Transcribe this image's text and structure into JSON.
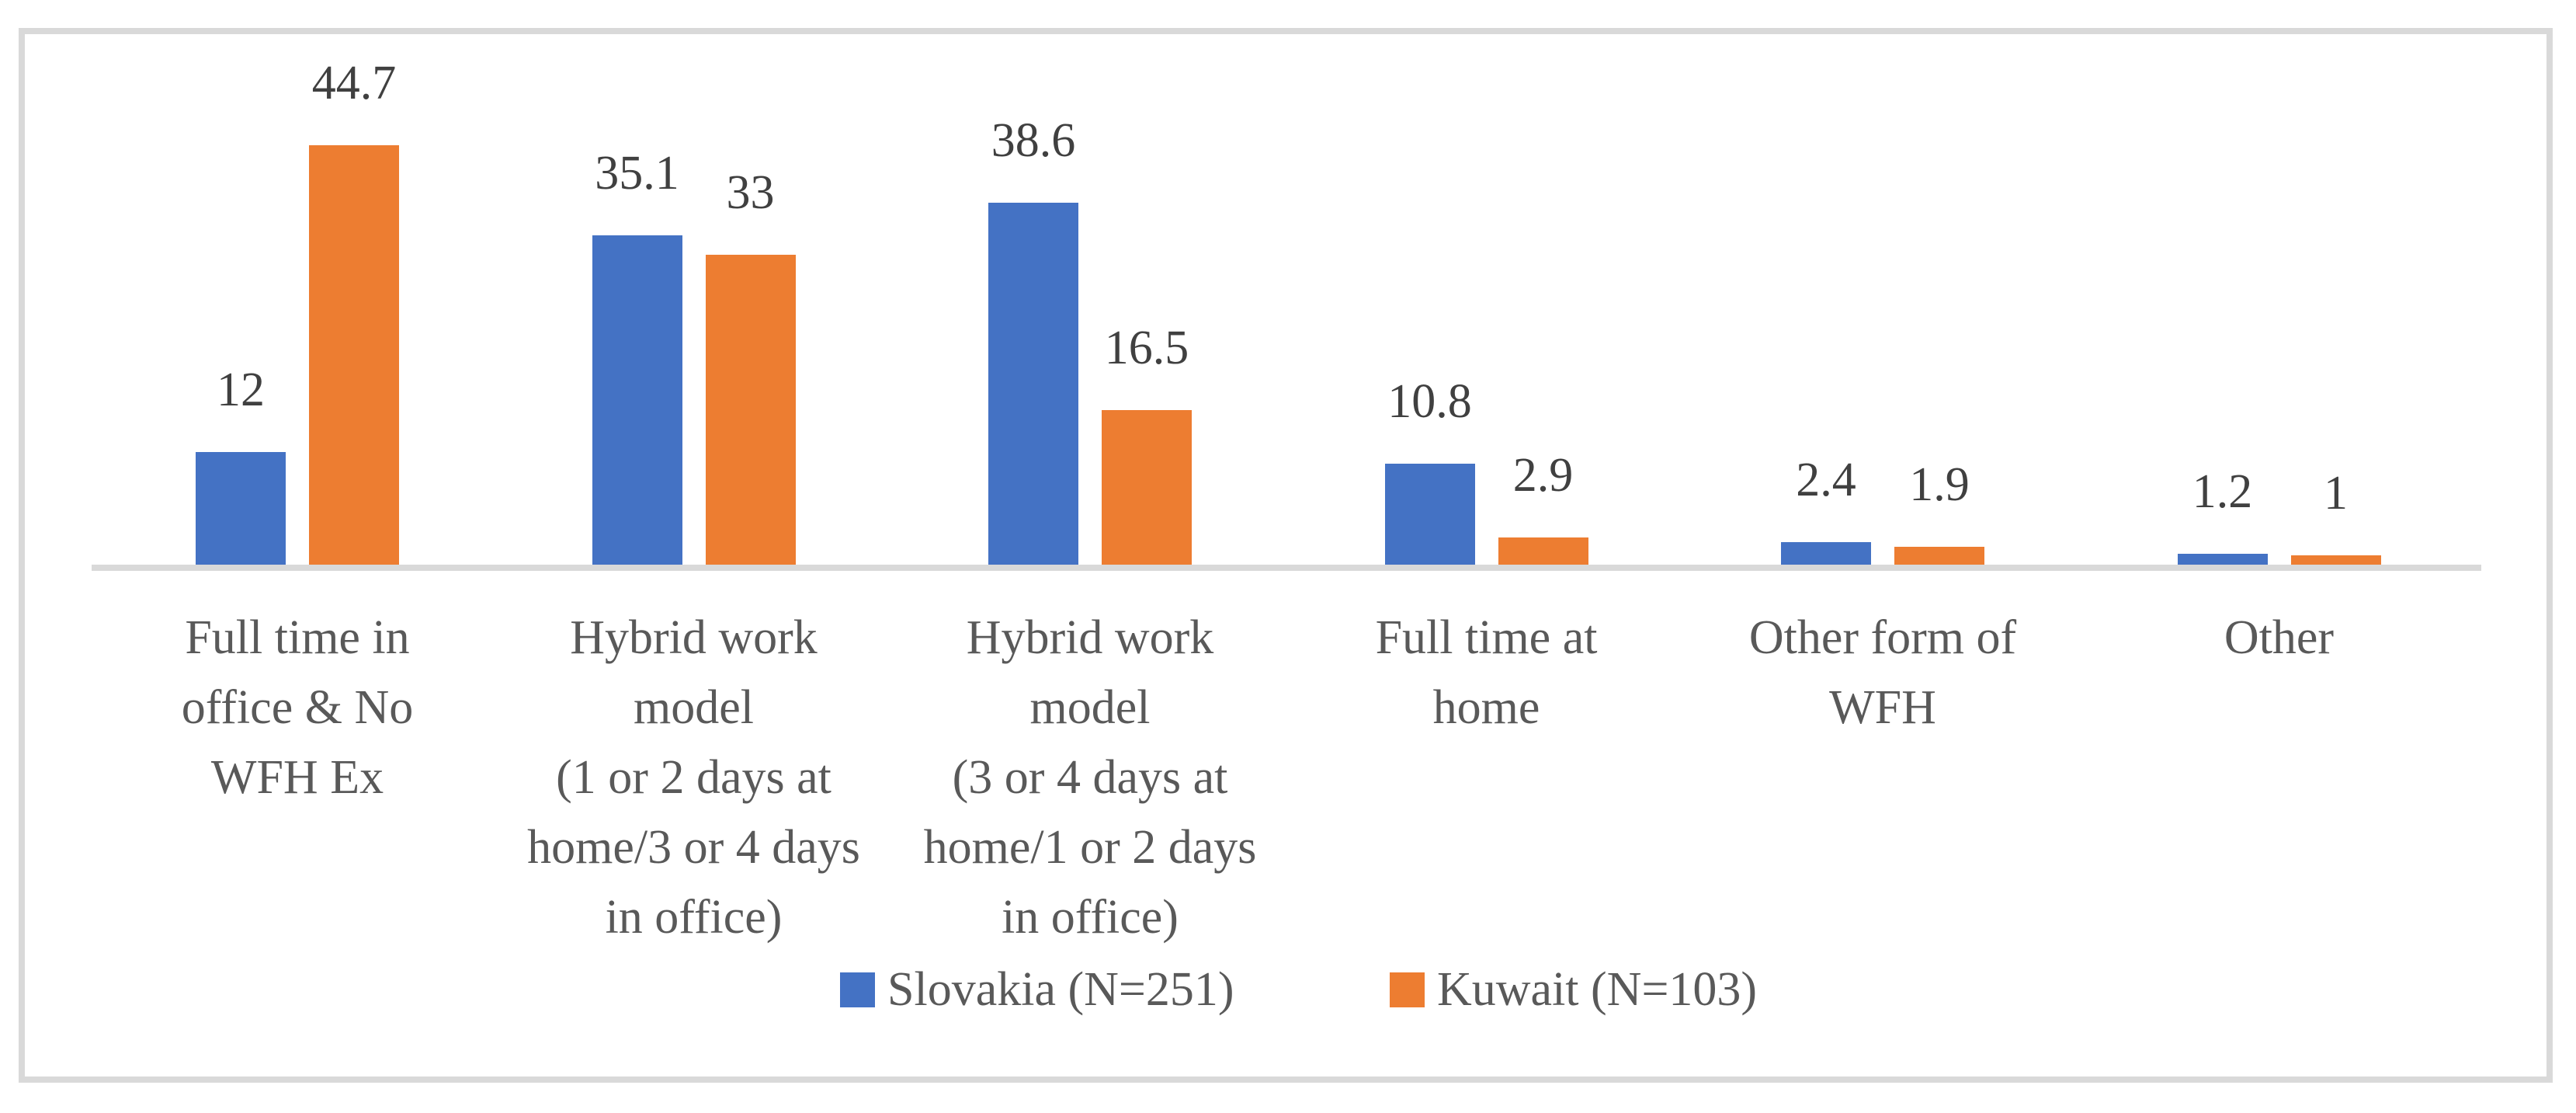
{
  "figure": {
    "background": "#FFFFFF",
    "border_color": "#D9D9D9",
    "axis_line_color": "#D9D9D9",
    "value_label_color": "#404040",
    "category_label_color": "#595959"
  },
  "legend": {
    "items": [
      {
        "label": "Slovakia (N=251)",
        "color": "#4472C4"
      },
      {
        "label": "Kuwait (N=103)",
        "color": "#ED7D31"
      }
    ]
  },
  "chart_data": {
    "type": "bar",
    "title": "",
    "xlabel": "",
    "ylabel": "",
    "grid": false,
    "y_axis_visible": false,
    "ylim": [
      0,
      50
    ],
    "legend_position": "bottom",
    "data_labels": true,
    "categories": [
      "Full time in office & No WFH Ex",
      "Hybrid work model (1 or 2 days at home/3 or 4 days in office)",
      "Hybrid work model (3 or 4 days at home/1 or 2 days in office)",
      "Full time at home",
      "Other form of WFH",
      "Other"
    ],
    "category_display": [
      "Full time in\noffice & No\nWFH Ex",
      "Hybrid work\nmodel\n(1 or 2 days at\nhome/3 or 4 days\nin office)",
      "Hybrid work\nmodel\n(3 or 4 days at\nhome/1 or 2 days\nin office)",
      "Full time at\nhome",
      "Other form of\nWFH",
      "Other"
    ],
    "series": [
      {
        "name": "Slovakia (N=251)",
        "color": "#4472C4",
        "values": [
          12,
          35.1,
          38.6,
          10.8,
          2.4,
          1.2
        ],
        "value_labels": [
          "12",
          "35.1",
          "38.6",
          "10.8",
          "2.4",
          "1.2"
        ]
      },
      {
        "name": "Kuwait (N=103)",
        "color": "#ED7D31",
        "values": [
          44.7,
          33,
          16.5,
          2.9,
          1.9,
          1
        ],
        "value_labels": [
          "44.7",
          "33",
          "16.5",
          "2.9",
          "1.9",
          "1"
        ]
      }
    ]
  }
}
